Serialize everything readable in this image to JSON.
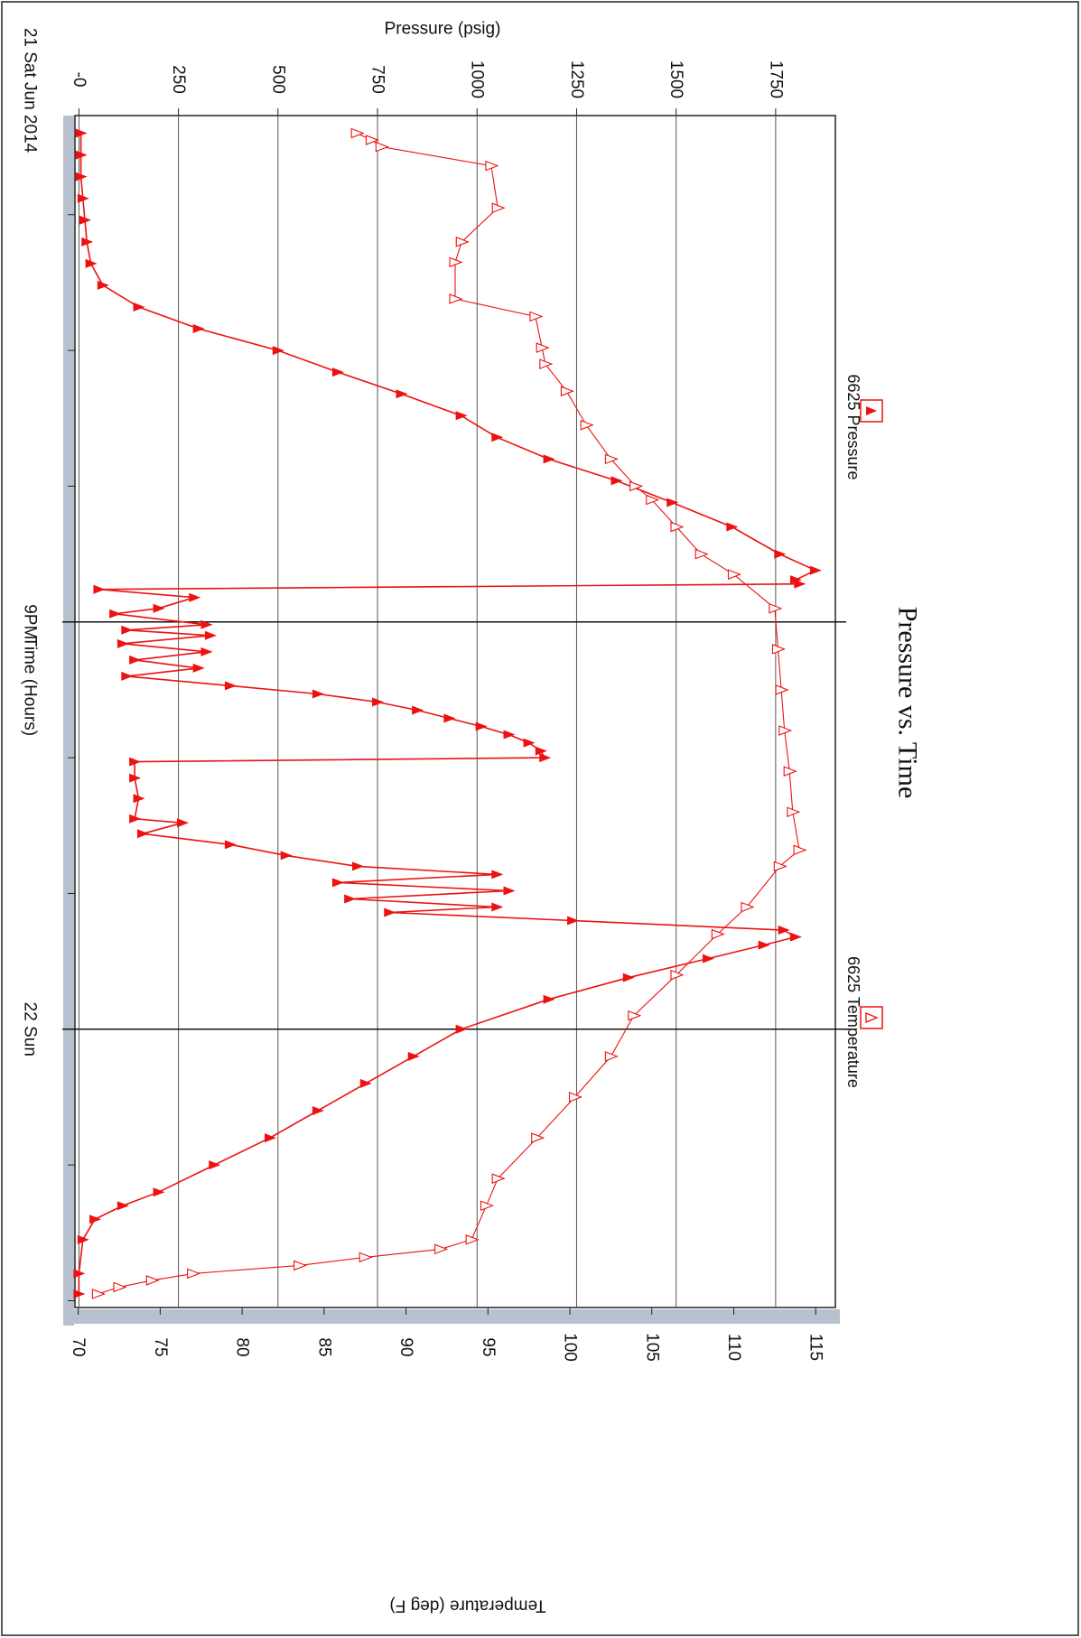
{
  "chart_data": {
    "type": "line",
    "title": "Pressure vs. Time",
    "x_axis": {
      "label": "Time (Hours)",
      "start_label": "21 Sat Jun 2014",
      "major_ticks": [
        {
          "hour": 0,
          "label": "21 Sat Jun 2014"
        },
        {
          "hour": 21,
          "label": "9PM"
        },
        {
          "hour": 24,
          "label": "22 Sun"
        }
      ],
      "minor_tick_hours": [
        18,
        19,
        20,
        22,
        23,
        25,
        26
      ]
    },
    "y_axis_left": {
      "label": "Pressure (psig)",
      "ticks": [
        0,
        250,
        500,
        750,
        1000,
        1250,
        1500,
        1750
      ],
      "tick_labels": [
        "-0",
        "250",
        "500",
        "750",
        "1000",
        "1250",
        "1500",
        "1750"
      ],
      "range": [
        -10,
        1900
      ]
    },
    "y_axis_right": {
      "label": "Temperature (deg F)",
      "ticks": [
        70,
        75,
        80,
        85,
        90,
        95,
        100,
        105,
        110,
        115
      ],
      "range": [
        69.8,
        116.2
      ]
    },
    "x_range": [
      17.27,
      26.05
    ],
    "legend": [
      {
        "name": "6625 Pressure",
        "marker": "filled-triangle",
        "placement": "top-left"
      },
      {
        "name": "6625 Temperature",
        "marker": "open-triangle",
        "placement": "top-right"
      }
    ],
    "series": [
      {
        "name": "6625 Pressure",
        "axis": "left",
        "color": "#ee1111",
        "marker": "filled",
        "points": [
          [
            17.4,
            5
          ],
          [
            17.56,
            5
          ],
          [
            17.72,
            5
          ],
          [
            17.88,
            10
          ],
          [
            18.04,
            15
          ],
          [
            18.2,
            20
          ],
          [
            18.36,
            30
          ],
          [
            18.52,
            60
          ],
          [
            18.68,
            150
          ],
          [
            18.84,
            300
          ],
          [
            19.0,
            500
          ],
          [
            19.16,
            650
          ],
          [
            19.32,
            810
          ],
          [
            19.48,
            960
          ],
          [
            19.64,
            1050
          ],
          [
            19.8,
            1180
          ],
          [
            19.96,
            1350
          ],
          [
            20.12,
            1490
          ],
          [
            20.3,
            1640
          ],
          [
            20.5,
            1760
          ],
          [
            20.62,
            1850
          ],
          [
            20.69,
            1800
          ],
          [
            20.72,
            1810
          ],
          [
            20.76,
            50
          ],
          [
            20.82,
            290
          ],
          [
            20.9,
            200
          ],
          [
            20.94,
            90
          ],
          [
            21.02,
            320
          ],
          [
            21.06,
            120
          ],
          [
            21.1,
            330
          ],
          [
            21.16,
            110
          ],
          [
            21.22,
            320
          ],
          [
            21.28,
            140
          ],
          [
            21.34,
            300
          ],
          [
            21.4,
            120
          ],
          [
            21.47,
            380
          ],
          [
            21.53,
            600
          ],
          [
            21.59,
            750
          ],
          [
            21.65,
            850
          ],
          [
            21.71,
            930
          ],
          [
            21.77,
            1010
          ],
          [
            21.83,
            1080
          ],
          [
            21.89,
            1130
          ],
          [
            21.95,
            1160
          ],
          [
            22.0,
            1170
          ],
          [
            22.03,
            140
          ],
          [
            22.15,
            140
          ],
          [
            22.3,
            150
          ],
          [
            22.45,
            140
          ],
          [
            22.48,
            260
          ],
          [
            22.56,
            160
          ],
          [
            22.64,
            380
          ],
          [
            22.72,
            520
          ],
          [
            22.8,
            700
          ],
          [
            22.86,
            1050
          ],
          [
            22.92,
            650
          ],
          [
            22.98,
            1080
          ],
          [
            23.04,
            680
          ],
          [
            23.1,
            1050
          ],
          [
            23.14,
            780
          ],
          [
            23.2,
            1240
          ],
          [
            23.27,
            1770
          ],
          [
            23.32,
            1800
          ],
          [
            23.38,
            1720
          ],
          [
            23.48,
            1580
          ],
          [
            23.62,
            1380
          ],
          [
            23.78,
            1180
          ],
          [
            24.0,
            960
          ],
          [
            24.2,
            840
          ],
          [
            24.4,
            720
          ],
          [
            24.6,
            600
          ],
          [
            24.8,
            480
          ],
          [
            25.0,
            340
          ],
          [
            25.2,
            200
          ],
          [
            25.3,
            110
          ],
          [
            25.4,
            40
          ],
          [
            25.55,
            10
          ],
          [
            25.8,
            0
          ],
          [
            25.95,
            0
          ]
        ]
      },
      {
        "name": "6625 Temperature",
        "axis": "right",
        "color": "#ee1111",
        "marker": "open",
        "points": [
          [
            17.4,
            87.0
          ],
          [
            17.45,
            87.9
          ],
          [
            17.5,
            88.5
          ],
          [
            17.64,
            95.2
          ],
          [
            17.95,
            95.6
          ],
          [
            18.2,
            93.4
          ],
          [
            18.35,
            93.0
          ],
          [
            18.62,
            93.0
          ],
          [
            18.75,
            97.9
          ],
          [
            18.98,
            98.3
          ],
          [
            19.1,
            98.5
          ],
          [
            19.3,
            99.8
          ],
          [
            19.55,
            101.0
          ],
          [
            19.8,
            102.5
          ],
          [
            20.0,
            104.0
          ],
          [
            20.1,
            105.0
          ],
          [
            20.3,
            106.5
          ],
          [
            20.5,
            108.0
          ],
          [
            20.65,
            110.0
          ],
          [
            20.9,
            112.5
          ],
          [
            21.2,
            112.7
          ],
          [
            21.5,
            112.9
          ],
          [
            21.8,
            113.1
          ],
          [
            22.1,
            113.4
          ],
          [
            22.4,
            113.6
          ],
          [
            22.68,
            114.0
          ],
          [
            22.8,
            112.8
          ],
          [
            23.1,
            110.8
          ],
          [
            23.3,
            109.0
          ],
          [
            23.6,
            106.5
          ],
          [
            23.9,
            103.9
          ],
          [
            24.2,
            102.5
          ],
          [
            24.5,
            100.3
          ],
          [
            24.8,
            98.0
          ],
          [
            25.1,
            95.6
          ],
          [
            25.3,
            94.9
          ],
          [
            25.55,
            94.0
          ],
          [
            25.62,
            92.1
          ],
          [
            25.68,
            87.5
          ],
          [
            25.74,
            83.5
          ],
          [
            25.8,
            77.0
          ],
          [
            25.85,
            74.5
          ],
          [
            25.9,
            72.5
          ],
          [
            25.95,
            71.2
          ]
        ]
      }
    ]
  }
}
